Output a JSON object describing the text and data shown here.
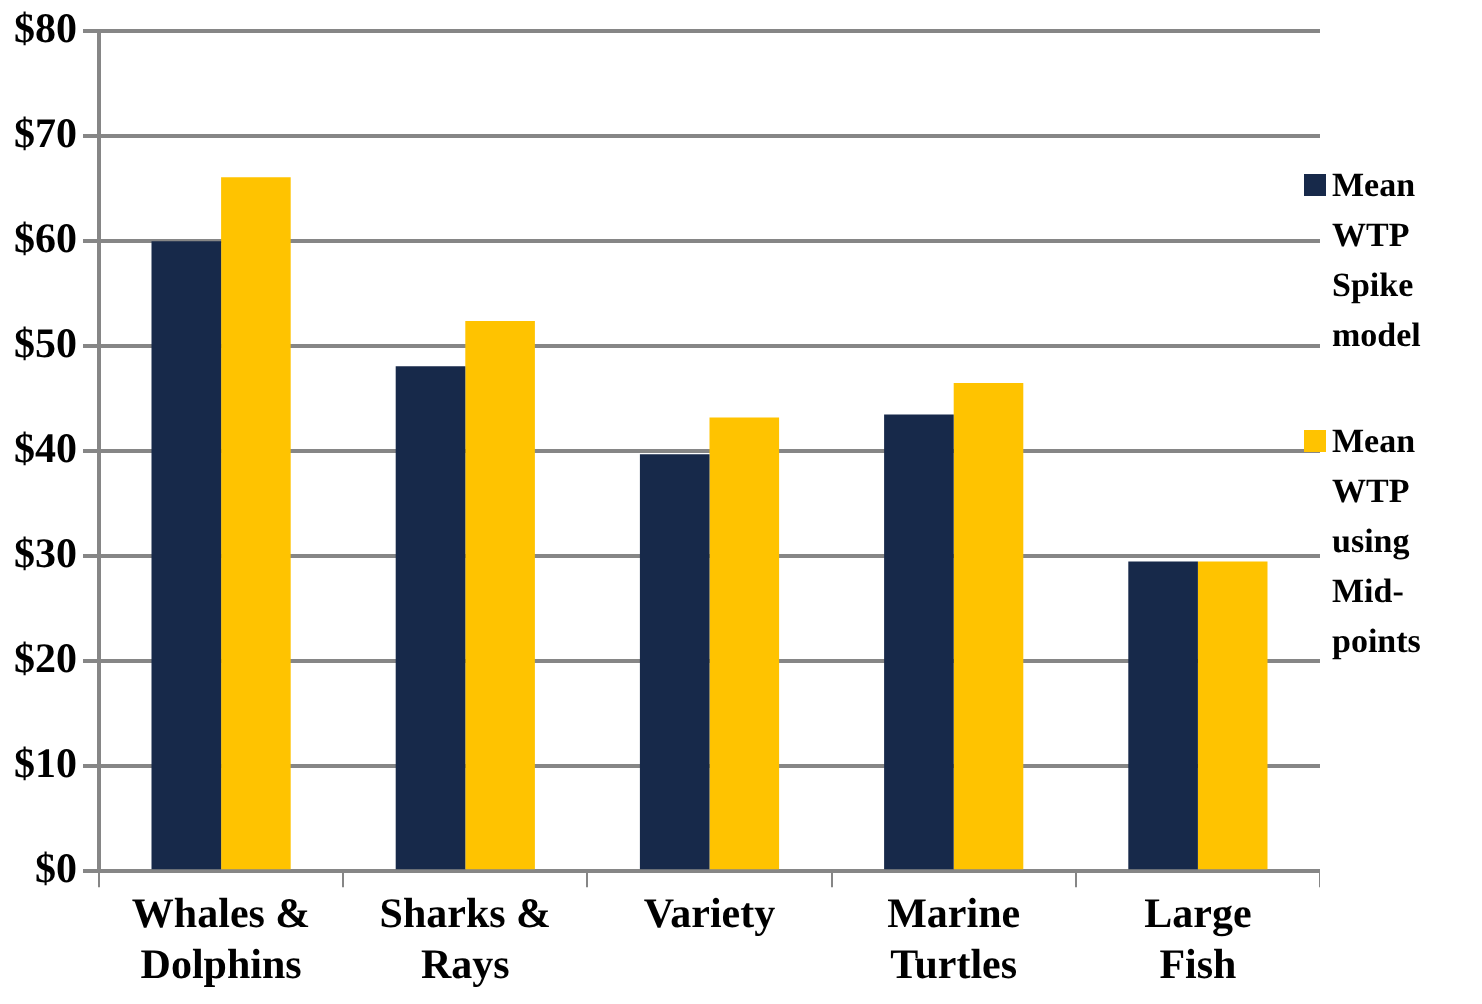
{
  "chart_data": {
    "type": "bar",
    "categories": [
      "Whales & Dolphins",
      "Sharks & Rays",
      "Variety",
      "Marine Turtles",
      "Large Fish"
    ],
    "series": [
      {
        "name": "Mean WTP Spike model",
        "color": "#17294a",
        "values": [
          60,
          48.1,
          39.7,
          43.5,
          29.5
        ]
      },
      {
        "name": "Mean WTP using Mid-points",
        "color": "#ffc300",
        "values": [
          66.1,
          52.4,
          43.2,
          46.5,
          29.5
        ]
      }
    ],
    "ylim": [
      0,
      80
    ],
    "yticks": [
      {
        "value": 0,
        "label": "$0"
      },
      {
        "value": 10,
        "label": "$10"
      },
      {
        "value": 20,
        "label": "$20"
      },
      {
        "value": 30,
        "label": "$30"
      },
      {
        "value": 40,
        "label": "$40"
      },
      {
        "value": 50,
        "label": "$50"
      },
      {
        "value": 60,
        "label": "$60"
      },
      {
        "value": 70,
        "label": "$70"
      },
      {
        "value": 80,
        "label": "$80"
      }
    ],
    "grid": "y",
    "legend": "right"
  }
}
